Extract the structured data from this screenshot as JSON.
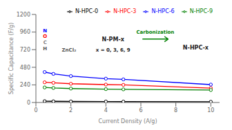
{
  "chart_data": {
    "type": "line",
    "xlabel": "Current Density (A/g)",
    "ylabel": "Specific Capacitance (F/g)",
    "x": [
      0.5,
      1,
      2,
      4,
      5,
      10
    ],
    "series": [
      {
        "name": "N-HPC-0",
        "color": "#000000",
        "values": [
          18,
          16,
          14,
          13,
          12,
          10
        ]
      },
      {
        "name": "N-HPC-3",
        "color": "#ff0000",
        "values": [
          275,
          268,
          255,
          244,
          240,
          196
        ]
      },
      {
        "name": "N-HPC-6",
        "color": "#0000ff",
        "values": [
          415,
          390,
          360,
          325,
          315,
          244
        ]
      },
      {
        "name": "N-HPC-9",
        "color": "#008000",
        "values": [
          205,
          198,
          190,
          182,
          179,
          170
        ]
      }
    ],
    "xlim": [
      0,
      10.5
    ],
    "ylim": [
      0,
      1200
    ],
    "xticks": [
      0,
      2,
      4,
      6,
      8,
      10
    ],
    "yticks": [
      0,
      240,
      480,
      720,
      960,
      1200
    ],
    "marker": "circle",
    "grid": false,
    "legend": "upper right",
    "annotations": [
      "N-PM-x",
      "Carbonization",
      "x = 0, 3, 6, 9",
      "N-HPC-x",
      "N",
      "O",
      "C",
      "H",
      "ZnCl₂"
    ]
  }
}
